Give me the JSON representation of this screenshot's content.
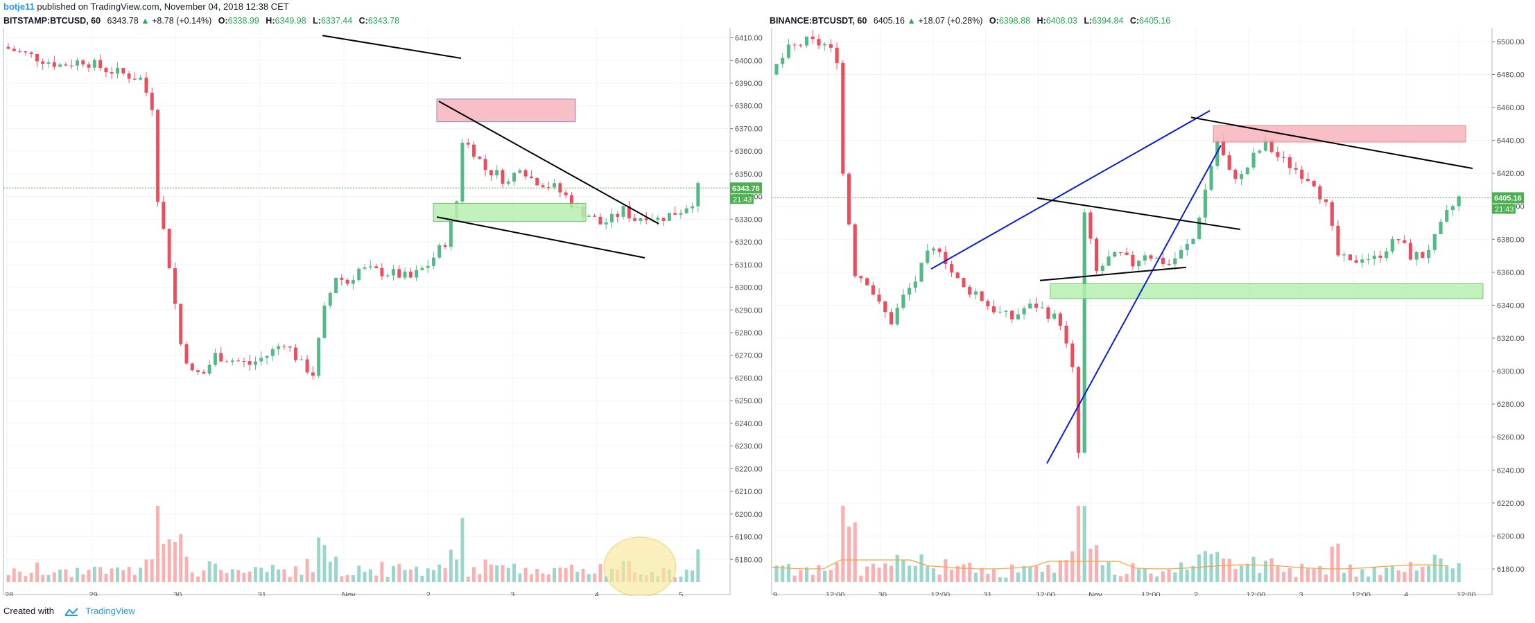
{
  "header": {
    "user": "botje11",
    "published_text": "published on TradingView.com, November 04, 2018 12:38 CET"
  },
  "footer": {
    "created_with": "Created with",
    "brand": "TradingView"
  },
  "colors": {
    "up": "#53b987",
    "down": "#eb4d5c",
    "volume_up": "#8fd1c4",
    "volume_down": "#f7a9a7",
    "price_line": "#4caf50",
    "resistance_zone": "#f7b6bd",
    "support_zone": "#b7f0b0",
    "trendline_blue": "#0a1bd6",
    "trendline_black": "#000000",
    "highlight_circle": "#f8e99a",
    "volume_ma": "#f7a23c"
  },
  "chart_data": [
    {
      "type": "candlestick",
      "symbol": "BITSTAMP:BTCUSD, 60",
      "last": "6343.78",
      "change": "+8.78 (+0.14%)",
      "ohlc_labels": {
        "o": "O:",
        "h": "H:",
        "l": "L:",
        "c": "C:"
      },
      "ohlc": {
        "o": "6338.99",
        "h": "6349.98",
        "l": "6337.44",
        "c": "6343.78"
      },
      "price_tag": "6343.78",
      "countdown": "21:43",
      "ylim": [
        6170,
        6412
      ],
      "y_ticks": [
        "6410.00",
        "6400.00",
        "6390.00",
        "6380.00",
        "6370.00",
        "6360.00",
        "6350.00",
        "6340.00",
        "6330.00",
        "6320.00",
        "6310.00",
        "6300.00",
        "6290.00",
        "6280.00",
        "6270.00",
        "6260.00",
        "6250.00",
        "6240.00",
        "6230.00",
        "6220.00",
        "6210.00",
        "6200.00",
        "6190.00",
        "6180.00"
      ],
      "x_ticks": [
        "28",
        "29",
        "30",
        "31",
        "Nov",
        "2",
        "3",
        "4",
        "5"
      ],
      "xlim": [
        28.0,
        5.9
      ],
      "price_path": [
        [
          0,
          6406
        ],
        [
          5,
          6402
        ],
        [
          10,
          6398
        ],
        [
          14,
          6400
        ],
        [
          18,
          6396
        ],
        [
          21,
          6394
        ],
        [
          24,
          6392
        ],
        [
          26,
          6380
        ],
        [
          27,
          6340
        ],
        [
          29,
          6310
        ],
        [
          31,
          6275
        ],
        [
          33,
          6262
        ],
        [
          35,
          6262
        ],
        [
          37,
          6270
        ],
        [
          40,
          6268
        ],
        [
          43,
          6266
        ],
        [
          46,
          6270
        ],
        [
          49,
          6276
        ],
        [
          52,
          6266
        ],
        [
          54,
          6262
        ],
        [
          56,
          6290
        ],
        [
          58,
          6305
        ],
        [
          60,
          6302
        ],
        [
          62,
          6308
        ],
        [
          65,
          6307
        ],
        [
          68,
          6306
        ],
        [
          71,
          6304
        ],
        [
          74,
          6310
        ],
        [
          77,
          6320
        ],
        [
          79,
          6338
        ],
        [
          80,
          6365
        ],
        [
          82,
          6360
        ],
        [
          84,
          6352
        ],
        [
          86,
          6350
        ],
        [
          88,
          6346
        ],
        [
          90,
          6354
        ],
        [
          92,
          6348
        ],
        [
          94,
          6346
        ],
        [
          96,
          6344
        ],
        [
          98,
          6340
        ],
        [
          100,
          6334
        ],
        [
          102,
          6332
        ],
        [
          104,
          6328
        ],
        [
          106,
          6330
        ],
        [
          108,
          6334
        ],
        [
          110,
          6330
        ],
        [
          112,
          6332
        ],
        [
          114,
          6330
        ],
        [
          116,
          6332
        ],
        [
          118,
          6334
        ],
        [
          120,
          6338
        ],
        [
          121,
          6343.78
        ]
      ],
      "annotations": [
        "resistance zone",
        "support zone",
        "descending trendline",
        "lower trendline",
        "highlight circle"
      ]
    },
    {
      "type": "candlestick",
      "symbol": "BINANCE:BTCUSDT, 60",
      "last": "6405.16",
      "change": "+18.07 (+0.28%)",
      "ohlc_labels": {
        "o": "O:",
        "h": "H:",
        "l": "L:",
        "c": "C:"
      },
      "ohlc": {
        "o": "6398.88",
        "h": "6408.03",
        "l": "6394.84",
        "c": "6405.16"
      },
      "price_tag": "6405.16",
      "countdown": "21:43",
      "ylim": [
        6172,
        6505
      ],
      "y_ticks": [
        "6500.00",
        "6480.00",
        "6460.00",
        "6440.00",
        "6420.00",
        "6400.00",
        "6380.00",
        "6360.00",
        "6340.00",
        "6320.00",
        "6300.00",
        "6280.00",
        "6260.00",
        "6240.00",
        "6220.00",
        "6200.00",
        "6180.00"
      ],
      "x_ticks": [
        "9",
        "12:00",
        "30",
        "12:00",
        "31",
        "12:00",
        "Nov",
        "12:00",
        "2",
        "12:00",
        "3",
        "12:00",
        "4",
        "12:00"
      ],
      "price_path": [
        [
          0,
          6480
        ],
        [
          3,
          6495
        ],
        [
          6,
          6500
        ],
        [
          9,
          6498
        ],
        [
          11,
          6490
        ],
        [
          12,
          6420
        ],
        [
          14,
          6360
        ],
        [
          16,
          6355
        ],
        [
          18,
          6340
        ],
        [
          20,
          6330
        ],
        [
          22,
          6345
        ],
        [
          24,
          6355
        ],
        [
          26,
          6370
        ],
        [
          28,
          6375
        ],
        [
          30,
          6360
        ],
        [
          32,
          6350
        ],
        [
          34,
          6348
        ],
        [
          36,
          6340
        ],
        [
          38,
          6335
        ],
        [
          40,
          6332
        ],
        [
          42,
          6338
        ],
        [
          44,
          6340
        ],
        [
          46,
          6335
        ],
        [
          48,
          6330
        ],
        [
          50,
          6300
        ],
        [
          51,
          6250
        ],
        [
          52,
          6395
        ],
        [
          54,
          6360
        ],
        [
          56,
          6368
        ],
        [
          58,
          6370
        ],
        [
          60,
          6365
        ],
        [
          62,
          6372
        ],
        [
          64,
          6368
        ],
        [
          66,
          6365
        ],
        [
          68,
          6372
        ],
        [
          70,
          6380
        ],
        [
          72,
          6410
        ],
        [
          74,
          6440
        ],
        [
          76,
          6420
        ],
        [
          78,
          6418
        ],
        [
          80,
          6430
        ],
        [
          82,
          6438
        ],
        [
          84,
          6430
        ],
        [
          86,
          6425
        ],
        [
          88,
          6420
        ],
        [
          90,
          6415
        ],
        [
          92,
          6400
        ],
        [
          94,
          6370
        ],
        [
          96,
          6365
        ],
        [
          98,
          6370
        ],
        [
          100,
          6368
        ],
        [
          102,
          6375
        ],
        [
          104,
          6380
        ],
        [
          106,
          6370
        ],
        [
          108,
          6370
        ],
        [
          110,
          6380
        ],
        [
          112,
          6395
        ],
        [
          114,
          6405.16
        ]
      ],
      "annotations": [
        "resistance zone",
        "support zone",
        "blue trendlines",
        "black trendlines",
        "volume moving average"
      ]
    }
  ]
}
